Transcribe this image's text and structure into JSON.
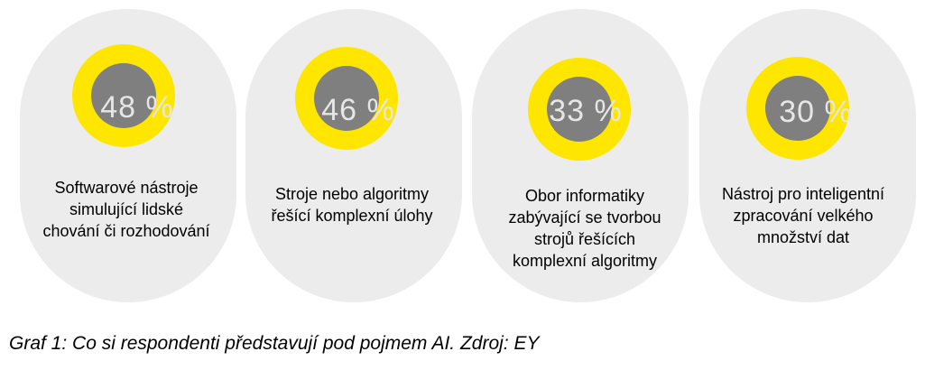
{
  "chart_data": {
    "type": "donut-cards",
    "colors": {
      "ring": "#ffe600",
      "core": "#7f7f7f",
      "card": "#ececec",
      "value_text": "#e6e6e6"
    },
    "items": [
      {
        "value": 48,
        "display": "48 %",
        "label": "Softwarové nástroje simulující lidské chování či rozhodování"
      },
      {
        "value": 46,
        "display": "46 %",
        "label": "Stroje nebo algoritmy řešící komplexní úlohy"
      },
      {
        "value": 33,
        "display": "33 %",
        "label": "Obor informatiky zabývající se tvorbou strojů řešících komplexní algoritmy"
      },
      {
        "value": 30,
        "display": "30 %",
        "label": "Nástroj pro inteligentní zpracování velkého množství dat"
      }
    ]
  },
  "caption": "Graf 1: Co si respondenti představují pod pojmem AI. Zdroj: EY"
}
